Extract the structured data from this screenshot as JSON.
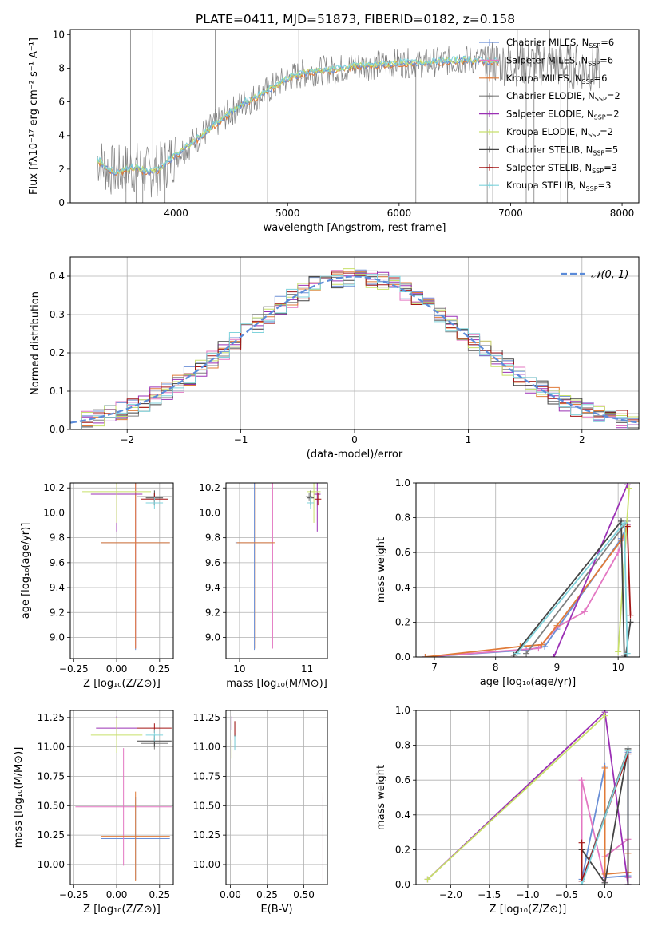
{
  "figure_title": "PLATE=0411, MJD=51873, FIBERID=0182, z=0.158",
  "legend": [
    {
      "label": "Chabrier MILES, N",
      "sub": "SSP",
      "tail": "=6",
      "color": "#6b8fd6"
    },
    {
      "label": "Salpeter MILES, N",
      "sub": "SSP",
      "tail": "=6",
      "color": "#e377c2"
    },
    {
      "label": "Kroupa MILES, N",
      "sub": "SSP",
      "tail": "=6",
      "color": "#e07b39"
    },
    {
      "label": "Chabrier ELODIE, N",
      "sub": "SSP",
      "tail": "=2",
      "color": "#7f7f7f"
    },
    {
      "label": "Salpeter ELODIE, N",
      "sub": "SSP",
      "tail": "=2",
      "color": "#9b30b5"
    },
    {
      "label": "Kroupa ELODIE, N",
      "sub": "SSP",
      "tail": "=2",
      "color": "#c8e06a"
    },
    {
      "label": "Chabrier STELIB, N",
      "sub": "SSP",
      "tail": "=5",
      "color": "#444444"
    },
    {
      "label": "Salpeter STELIB, N",
      "sub": "SSP",
      "tail": "=3",
      "color": "#a31515"
    },
    {
      "label": "Kroupa STELIB, N",
      "sub": "SSP",
      "tail": "=3",
      "color": "#7fd3dc"
    }
  ],
  "chart_data": [
    {
      "id": "spectrum",
      "type": "line",
      "xlabel": "wavelength [Angstrom, rest frame]",
      "ylabel": "Flux [fλ10⁻¹⁷ erg cm⁻² s⁻¹ A⁻¹]",
      "xlim": [
        3050,
        8150
      ],
      "ylim": [
        0,
        10.3
      ],
      "xticks": [
        "4000",
        "5000",
        "6000",
        "7000",
        "8000"
      ],
      "yticks": [
        "0",
        "2",
        "4",
        "6",
        "8",
        "10"
      ],
      "continuum_x": [
        3290,
        3350,
        3450,
        3550,
        3650,
        3750,
        3850,
        3950,
        4050,
        4150,
        4300,
        4450,
        4600,
        4750,
        4900,
        5000,
        5200,
        5400,
        5600,
        5800,
        6000,
        6200,
        6400,
        6600,
        6800,
        7000,
        7200,
        7400,
        7600,
        7800
      ],
      "continuum_y": [
        2.6,
        2.2,
        1.8,
        2.0,
        2.1,
        1.8,
        2.0,
        2.6,
        3.1,
        3.6,
        4.4,
        5.2,
        5.9,
        6.4,
        7.0,
        7.4,
        7.8,
        7.9,
        8.1,
        8.2,
        8.3,
        8.3,
        8.4,
        8.5,
        8.4,
        8.3,
        8.3,
        8.2,
        8.1,
        7.9
      ],
      "spikes_x": [
        3550,
        3590,
        3640,
        3700,
        3790,
        3900,
        4350,
        4820,
        5100,
        6150,
        6790,
        6840,
        6950,
        7060,
        7140,
        7210,
        7350,
        7450,
        7510
      ],
      "spikes_y": [
        0,
        10.3,
        0,
        0,
        10.3,
        0,
        10.3,
        0,
        10.3,
        0,
        0,
        0,
        10.3,
        10.3,
        0,
        0,
        10.3,
        0,
        0
      ]
    },
    {
      "id": "residuals",
      "type": "line",
      "xlabel": "(data-model)/error",
      "ylabel": "Normed distribution",
      "xlim": [
        -2.5,
        2.5
      ],
      "ylim": [
        0,
        0.45
      ],
      "xticks": [
        "−2",
        "−1",
        "0",
        "1",
        "2"
      ],
      "yticks": [
        "0.0",
        "0.1",
        "0.2",
        "0.3",
        "0.4"
      ],
      "gauss_label": "𝒩(0, 1)"
    },
    {
      "id": "age_vs_Z",
      "type": "scatter",
      "xlabel": "Z [log₁₀(Z/Z⊙)]",
      "ylabel": "age  [log₁₀(age/yr)]",
      "xlim": [
        -0.27,
        0.33
      ],
      "ylim": [
        8.83,
        10.24
      ],
      "xticks": [
        "−0.25",
        "0.00",
        "0.25"
      ],
      "yticks": [
        "9.0",
        "9.2",
        "9.4",
        "9.6",
        "9.8",
        "10.0",
        "10.2"
      ],
      "points": [
        {
          "x": 0.11,
          "y": 9.76,
          "xerr": 0.2,
          "yerr": 0.86,
          "c": 0
        },
        {
          "x": 0.11,
          "y": 9.91,
          "xerr": 0.28,
          "yerr": 1.0,
          "c": 1
        },
        {
          "x": 0.11,
          "y": 9.76,
          "xerr": 0.2,
          "yerr": 0.85,
          "c": 2
        },
        {
          "x": 0.22,
          "y": 10.13,
          "xerr": 0.1,
          "yerr": 0.03,
          "c": 3
        },
        {
          "x": 0.0,
          "y": 10.15,
          "xerr": 0.15,
          "yerr": 0.3,
          "c": 4
        },
        {
          "x": 0.0,
          "y": 10.17,
          "xerr": 0.2,
          "yerr": 0.25,
          "c": 5
        },
        {
          "x": 0.22,
          "y": 10.12,
          "xerr": 0.05,
          "yerr": 0.06,
          "c": 6
        },
        {
          "x": 0.22,
          "y": 10.11,
          "xerr": 0.08,
          "yerr": 0.05,
          "c": 7
        },
        {
          "x": 0.22,
          "y": 10.08,
          "xerr": 0.05,
          "yerr": 0.05,
          "c": 8
        }
      ]
    },
    {
      "id": "age_vs_mass",
      "type": "scatter",
      "xlabel": "mass [log₁₀(M/M⊙)]",
      "ylabel": "",
      "xlim": [
        9.8,
        11.3
      ],
      "ylim": [
        8.83,
        10.24
      ],
      "xticks": [
        "10",
        "11"
      ],
      "yticks": [
        "9.0",
        "9.2",
        "9.4",
        "9.6",
        "9.8",
        "10.0",
        "10.2"
      ],
      "points": [
        {
          "x": 10.22,
          "y": 9.76,
          "xerr": 0.28,
          "yerr": 0.86,
          "c": 0
        },
        {
          "x": 10.49,
          "y": 9.91,
          "xerr": 0.4,
          "yerr": 1.0,
          "c": 1
        },
        {
          "x": 10.24,
          "y": 9.76,
          "xerr": 0.28,
          "yerr": 0.85,
          "c": 2
        },
        {
          "x": 11.03,
          "y": 10.13,
          "xerr": 0.05,
          "yerr": 0.03,
          "c": 3
        },
        {
          "x": 11.15,
          "y": 10.15,
          "xerr": 0.05,
          "yerr": 0.3,
          "c": 4
        },
        {
          "x": 11.1,
          "y": 10.17,
          "xerr": 0.1,
          "yerr": 0.25,
          "c": 5
        },
        {
          "x": 11.05,
          "y": 10.12,
          "xerr": 0.05,
          "yerr": 0.06,
          "c": 6
        },
        {
          "x": 11.16,
          "y": 10.11,
          "xerr": 0.05,
          "yerr": 0.05,
          "c": 7
        },
        {
          "x": 11.05,
          "y": 10.08,
          "xerr": 0.05,
          "yerr": 0.05,
          "c": 8
        }
      ]
    },
    {
      "id": "weight_vs_age",
      "type": "line",
      "xlabel": "age  [log₁₀(age/yr)]",
      "ylabel": "mass weight",
      "xlim": [
        6.7,
        10.35
      ],
      "ylim": [
        0,
        1.0
      ],
      "xticks": [
        "7",
        "8",
        "9",
        "10"
      ],
      "yticks": [
        "0.0",
        "0.2",
        "0.4",
        "0.6",
        "0.8",
        "1.0"
      ],
      "series": [
        {
          "c": 0,
          "x": [
            6.85,
            8.5,
            8.8,
            9.0,
            10.05,
            10.15
          ],
          "y": [
            0.0,
            0.04,
            0.06,
            0.16,
            0.68,
            0.76
          ]
        },
        {
          "c": 1,
          "x": [
            6.85,
            8.7,
            9.0,
            9.45,
            10.0,
            10.15
          ],
          "y": [
            0.0,
            0.05,
            0.17,
            0.26,
            0.6,
            0.76
          ]
        },
        {
          "c": 2,
          "x": [
            6.85,
            8.4,
            8.75,
            9.0,
            10.05,
            10.15
          ],
          "y": [
            0.0,
            0.06,
            0.07,
            0.18,
            0.67,
            0.75
          ]
        },
        {
          "c": 3,
          "x": [
            8.5,
            10.15
          ],
          "y": [
            0.02,
            0.78
          ]
        },
        {
          "c": 4,
          "x": [
            8.95,
            10.15
          ],
          "y": [
            0.0,
            0.99
          ]
        },
        {
          "c": 5,
          "x": [
            10.0,
            10.18
          ],
          "y": [
            0.03,
            0.97
          ]
        },
        {
          "c": 6,
          "x": [
            8.3,
            10.05,
            10.1,
            10.12,
            10.2
          ],
          "y": [
            0.01,
            0.78,
            0.01,
            0.0,
            0.2
          ]
        },
        {
          "c": 7,
          "x": [
            10.15,
            10.2
          ],
          "y": [
            0.75,
            0.24
          ]
        },
        {
          "c": 8,
          "x": [
            8.35,
            10.1,
            10.15
          ],
          "y": [
            0.02,
            0.77,
            0.02
          ]
        }
      ]
    },
    {
      "id": "mass_vs_Z",
      "type": "scatter",
      "xlabel": "Z [log₁₀(Z/Z⊙)]",
      "ylabel": "mass [log₁₀(M/M⊙)]",
      "xlim": [
        -0.27,
        0.33
      ],
      "ylim": [
        9.83,
        11.31
      ],
      "xticks": [
        "−0.25",
        "0.00",
        "0.25"
      ],
      "yticks": [
        "10.00",
        "10.25",
        "10.50",
        "10.75",
        "11.00",
        "11.25"
      ],
      "points": [
        {
          "x": 0.11,
          "y": 10.22,
          "xerr": 0.2,
          "yerr": 0.35,
          "c": 0
        },
        {
          "x": 0.04,
          "y": 10.49,
          "xerr": 0.28,
          "yerr": 0.5,
          "c": 1
        },
        {
          "x": 0.11,
          "y": 10.24,
          "xerr": 0.2,
          "yerr": 0.38,
          "c": 2
        },
        {
          "x": 0.22,
          "y": 11.03,
          "xerr": 0.08,
          "yerr": 0.05,
          "c": 3
        },
        {
          "x": 0.0,
          "y": 11.16,
          "xerr": 0.12,
          "yerr": 0.1,
          "c": 4
        },
        {
          "x": 0.0,
          "y": 11.1,
          "xerr": 0.15,
          "yerr": 0.15,
          "c": 5
        },
        {
          "x": 0.22,
          "y": 11.05,
          "xerr": 0.1,
          "yerr": 0.05,
          "c": 6
        },
        {
          "x": 0.22,
          "y": 11.16,
          "xerr": 0.1,
          "yerr": 0.04,
          "c": 7
        },
        {
          "x": 0.22,
          "y": 11.1,
          "xerr": 0.05,
          "yerr": 0.05,
          "c": 8
        }
      ]
    },
    {
      "id": "mass_vs_ebv",
      "type": "scatter",
      "xlabel": "E(B-V)",
      "ylabel": "",
      "xlim": [
        -0.03,
        0.66
      ],
      "ylim": [
        9.83,
        11.31
      ],
      "xticks": [
        "0.00",
        "0.25",
        "0.50"
      ],
      "yticks": [
        "10.00",
        "10.25",
        "10.50",
        "10.75",
        "11.00",
        "11.25"
      ],
      "points": [
        {
          "x": 0.63,
          "y": 10.22,
          "xerr": 0.0,
          "yerr": 0.35,
          "c": 0
        },
        {
          "x": 0.63,
          "y": 10.23,
          "xerr": 0.0,
          "yerr": 0.38,
          "c": 1
        },
        {
          "x": 0.63,
          "y": 10.24,
          "xerr": 0.0,
          "yerr": 0.38,
          "c": 2
        },
        {
          "x": 0.03,
          "y": 11.05,
          "xerr": 0.0,
          "yerr": 0.07,
          "c": 3
        },
        {
          "x": 0.01,
          "y": 11.2,
          "xerr": 0.0,
          "yerr": 0.06,
          "c": 4
        },
        {
          "x": 0.01,
          "y": 10.98,
          "xerr": 0.0,
          "yerr": 0.08,
          "c": 5
        },
        {
          "x": 0.03,
          "y": 11.15,
          "xerr": 0.0,
          "yerr": 0.06,
          "c": 6
        },
        {
          "x": 0.03,
          "y": 11.16,
          "xerr": 0.0,
          "yerr": 0.06,
          "c": 7
        },
        {
          "x": 0.03,
          "y": 11.03,
          "xerr": 0.0,
          "yerr": 0.06,
          "c": 8
        }
      ]
    },
    {
      "id": "weight_vs_Z",
      "type": "line",
      "xlabel": "Z [log₁₀(Z/Z⊙)]",
      "ylabel": "mass weight",
      "xlim": [
        -2.45,
        0.45
      ],
      "ylim": [
        0,
        1.0
      ],
      "xticks": [
        "−2.0",
        "−1.5",
        "−1.0",
        "−0.5",
        "0.0"
      ],
      "yticks": [
        "0.0",
        "0.2",
        "0.4",
        "0.6",
        "0.8",
        "1.0"
      ],
      "series": [
        {
          "c": 0,
          "x": [
            -0.3,
            0.0,
            0.0,
            0.3,
            0.3
          ],
          "y": [
            0.03,
            0.68,
            0.04,
            0.05,
            0.76
          ]
        },
        {
          "c": 1,
          "x": [
            -0.3,
            -0.3,
            0.0,
            0.0,
            0.3,
            0.3
          ],
          "y": [
            0.02,
            0.6,
            0.02,
            0.16,
            0.26,
            0.04
          ]
        },
        {
          "c": 2,
          "x": [
            0.0,
            0.0,
            0.3,
            0.3
          ],
          "y": [
            0.67,
            0.06,
            0.07,
            0.18
          ]
        },
        {
          "c": 3,
          "x": [
            -0.3,
            0.3
          ],
          "y": [
            0.02,
            0.78
          ]
        },
        {
          "c": 4,
          "x": [
            -2.3,
            0.0,
            0.3
          ],
          "y": [
            0.03,
            0.99,
            0.0
          ]
        },
        {
          "c": 5,
          "x": [
            -2.3,
            0.0
          ],
          "y": [
            0.03,
            0.97
          ]
        },
        {
          "c": 6,
          "x": [
            -0.3,
            0.0,
            0.3,
            0.3
          ],
          "y": [
            0.2,
            0.01,
            0.78,
            0.0
          ]
        },
        {
          "c": 7,
          "x": [
            -0.3,
            -0.3,
            0.3
          ],
          "y": [
            0.24,
            0.02,
            0.75
          ]
        },
        {
          "c": 8,
          "x": [
            -0.3,
            0.3
          ],
          "y": [
            0.0,
            0.77
          ]
        }
      ]
    }
  ]
}
